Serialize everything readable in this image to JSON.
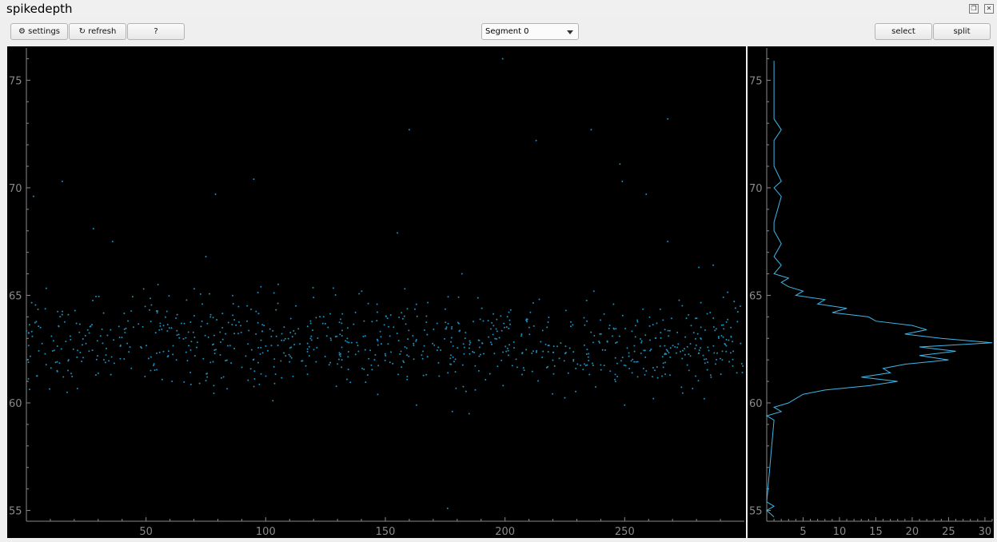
{
  "window": {
    "title": "spikedepth",
    "restore_icon": "restore-icon",
    "close_icon": "close-icon"
  },
  "toolbar": {
    "settings_label": "⚙ settings",
    "refresh_label": "↻ refresh",
    "help_label": "?",
    "segment_value": "Segment 0",
    "select_label": "select",
    "split_label": "split"
  },
  "colors": {
    "points": "#1a8fbf",
    "histogram": "#3fb7e8",
    "axes": "#8a8a8a"
  },
  "chart_data": [
    {
      "type": "scatter",
      "title": "",
      "xlabel": "",
      "ylabel": "",
      "xlim": [
        0,
        300
      ],
      "ylim": [
        54.5,
        76.5
      ],
      "x_ticks": [
        50,
        100,
        150,
        200,
        250
      ],
      "y_ticks": [
        55,
        60,
        65,
        70,
        75
      ],
      "cluster": {
        "x_range": [
          0,
          300
        ],
        "y_center": 62.8,
        "y_spread": 1.1,
        "n_points": 900
      },
      "outliers": [
        [
          3,
          69.6
        ],
        [
          15,
          70.3
        ],
        [
          28,
          68.1
        ],
        [
          36,
          67.5
        ],
        [
          49,
          65.3
        ],
        [
          55,
          65.5
        ],
        [
          75,
          66.8
        ],
        [
          79,
          69.7
        ],
        [
          95,
          70.4
        ],
        [
          98,
          65.4
        ],
        [
          120,
          64.9
        ],
        [
          155,
          67.9
        ],
        [
          160,
          72.7
        ],
        [
          176,
          55.1
        ],
        [
          182,
          66.0
        ],
        [
          199,
          76.0
        ],
        [
          213,
          72.2
        ],
        [
          236,
          72.7
        ],
        [
          248,
          71.1
        ],
        [
          249,
          70.3
        ],
        [
          259,
          69.7
        ],
        [
          268,
          73.2
        ],
        [
          268,
          67.5
        ],
        [
          287,
          66.4
        ],
        [
          281,
          66.3
        ],
        [
          185,
          59.5
        ],
        [
          163,
          59.9
        ],
        [
          262,
          60.2
        ],
        [
          178,
          59.6
        ],
        [
          250,
          59.9
        ],
        [
          103,
          60.1
        ]
      ]
    },
    {
      "type": "line",
      "title": "",
      "orientation": "horizontal-histogram",
      "xlim": [
        0,
        31
      ],
      "ylim": [
        54.5,
        76.5
      ],
      "x_ticks": [
        5,
        10,
        15,
        20,
        25,
        30
      ],
      "y_ticks": [
        55,
        60,
        65,
        70,
        75
      ],
      "bins": [
        [
          54.7,
          1
        ],
        [
          55.0,
          0
        ],
        [
          55.2,
          1
        ],
        [
          55.4,
          0
        ],
        [
          59.2,
          1
        ],
        [
          59.4,
          0
        ],
        [
          59.6,
          2
        ],
        [
          59.8,
          1
        ],
        [
          60.0,
          3
        ],
        [
          60.2,
          4
        ],
        [
          60.4,
          5
        ],
        [
          60.6,
          8
        ],
        [
          60.8,
          14
        ],
        [
          61.0,
          18
        ],
        [
          61.2,
          13
        ],
        [
          61.4,
          17
        ],
        [
          61.6,
          16
        ],
        [
          61.8,
          19
        ],
        [
          62.0,
          25
        ],
        [
          62.2,
          21
        ],
        [
          62.4,
          26
        ],
        [
          62.6,
          21
        ],
        [
          62.8,
          31
        ],
        [
          63.0,
          24
        ],
        [
          63.2,
          19
        ],
        [
          63.4,
          22
        ],
        [
          63.6,
          20
        ],
        [
          63.8,
          15
        ],
        [
          64.0,
          14
        ],
        [
          64.2,
          9
        ],
        [
          64.4,
          11
        ],
        [
          64.6,
          7
        ],
        [
          64.8,
          8
        ],
        [
          65.0,
          4
        ],
        [
          65.2,
          5
        ],
        [
          65.4,
          3
        ],
        [
          65.6,
          2
        ],
        [
          65.8,
          3
        ],
        [
          66.0,
          1
        ],
        [
          66.4,
          2
        ],
        [
          66.8,
          1
        ],
        [
          67.4,
          2
        ],
        [
          68.0,
          1
        ],
        [
          68.4,
          1
        ],
        [
          69.6,
          2
        ],
        [
          70.0,
          1
        ],
        [
          70.3,
          2
        ],
        [
          71.0,
          1
        ],
        [
          72.2,
          1
        ],
        [
          72.7,
          2
        ],
        [
          73.2,
          1
        ],
        [
          75.9,
          1
        ]
      ]
    }
  ]
}
